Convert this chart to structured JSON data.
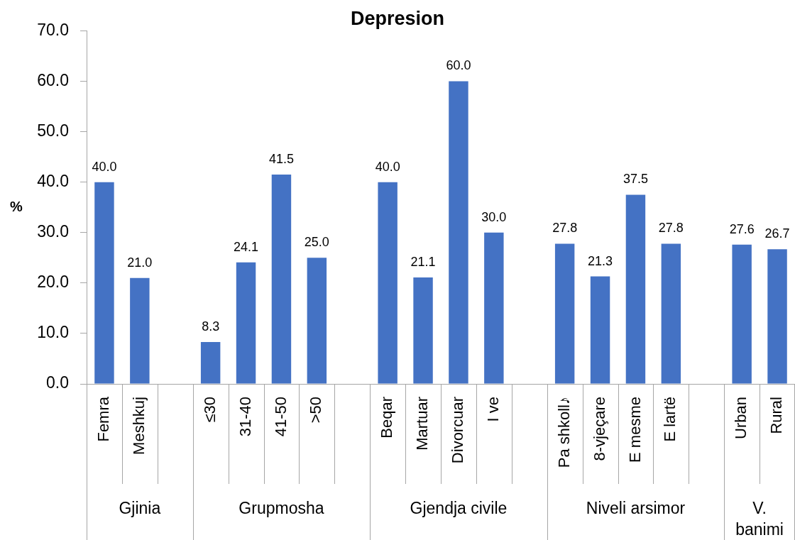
{
  "chart_data": {
    "type": "bar",
    "title": "Depresion",
    "ylabel": "%",
    "categories": [
      "Femra",
      "Meshkuj",
      null,
      "≤30",
      "31-40",
      "41-50",
      ">50",
      null,
      "Beqar",
      "Martuar",
      "Divorcuar",
      "I ve",
      null,
      "Pa shkoll♪",
      "8-vjeçare",
      "E mesme",
      "E lartë",
      null,
      "Urban",
      "Rural"
    ],
    "values": [
      40.0,
      21.0,
      null,
      8.3,
      24.1,
      41.5,
      25.0,
      null,
      40.0,
      21.1,
      60.0,
      30.0,
      null,
      27.8,
      21.3,
      37.5,
      27.8,
      null,
      27.6,
      26.7
    ],
    "value_labels": [
      "40.0",
      "21.0",
      null,
      "8.3",
      "24.1",
      "41.5",
      "25.0",
      null,
      "40.0",
      "21.1",
      "60.0",
      "30.0",
      null,
      "27.8",
      "21.3",
      "37.5",
      "27.8",
      null,
      "27.6",
      "26.7"
    ],
    "color": "#4472c4",
    "ylim": [
      0,
      70
    ],
    "yticks": [
      {
        "value": 0,
        "label": "0.0"
      },
      {
        "value": 10,
        "label": "10.0"
      },
      {
        "value": 20,
        "label": "20.0"
      },
      {
        "value": 30,
        "label": "30.0"
      },
      {
        "value": 40,
        "label": "40.0"
      },
      {
        "value": 50,
        "label": "50.0"
      },
      {
        "value": 60,
        "label": "60.0"
      },
      {
        "value": 70,
        "label": "70.0"
      }
    ],
    "annotations": [
      "Gjinia",
      "Grupmosha",
      "Gjendja civile",
      "Niveli arsimor",
      "V. banimi"
    ]
  }
}
